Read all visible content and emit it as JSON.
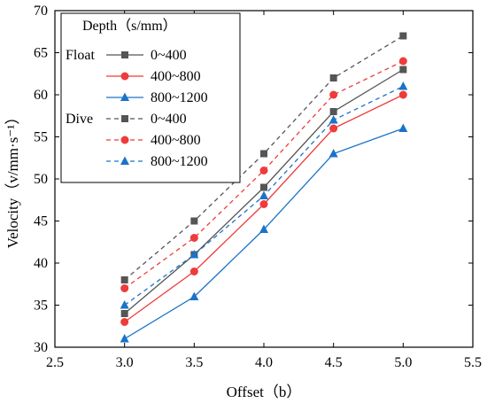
{
  "chart_data": {
    "type": "line",
    "title": "",
    "xlabel": "Offset（b）",
    "ylabel": "Velocity（v/mm·s⁻¹）",
    "xlim": [
      2.5,
      5.5
    ],
    "ylim": [
      30,
      70
    ],
    "xticks": [
      2.5,
      3.0,
      3.5,
      4.0,
      4.5,
      5.0,
      5.5
    ],
    "yticks": [
      30,
      35,
      40,
      45,
      50,
      55,
      60,
      65,
      70
    ],
    "x": [
      3.0,
      3.5,
      4.0,
      4.5,
      5.0
    ],
    "grid": false,
    "legend": {
      "placement": "top-left",
      "header": "Depth（s/mm）",
      "groups": [
        {
          "label": "Float",
          "entries": [
            "0~400",
            "400~800",
            "800~1200"
          ]
        },
        {
          "label": "Dive",
          "entries": [
            "0~400",
            "400~800",
            "800~1200"
          ]
        }
      ]
    },
    "series": [
      {
        "group": "Float",
        "name": "0~400",
        "values": [
          34,
          41,
          49,
          58,
          63
        ],
        "color": "#555555",
        "marker": "square",
        "dash": "solid"
      },
      {
        "group": "Float",
        "name": "400~800",
        "values": [
          33,
          39,
          47,
          56,
          60
        ],
        "color": "#ee3b3b",
        "marker": "circle",
        "dash": "solid"
      },
      {
        "group": "Float",
        "name": "800~1200",
        "values": [
          31,
          36,
          44,
          53,
          56
        ],
        "color": "#1a73c8",
        "marker": "triangle",
        "dash": "solid"
      },
      {
        "group": "Dive",
        "name": "0~400",
        "values": [
          38,
          45,
          53,
          62,
          67
        ],
        "color": "#555555",
        "marker": "square",
        "dash": "dashed"
      },
      {
        "group": "Dive",
        "name": "400~800",
        "values": [
          37,
          43,
          51,
          60,
          64
        ],
        "color": "#ee3b3b",
        "marker": "circle",
        "dash": "dashed"
      },
      {
        "group": "Dive",
        "name": "800~1200",
        "values": [
          35,
          41,
          48,
          57,
          61
        ],
        "color": "#1a73c8",
        "marker": "triangle",
        "dash": "dashed"
      }
    ]
  }
}
